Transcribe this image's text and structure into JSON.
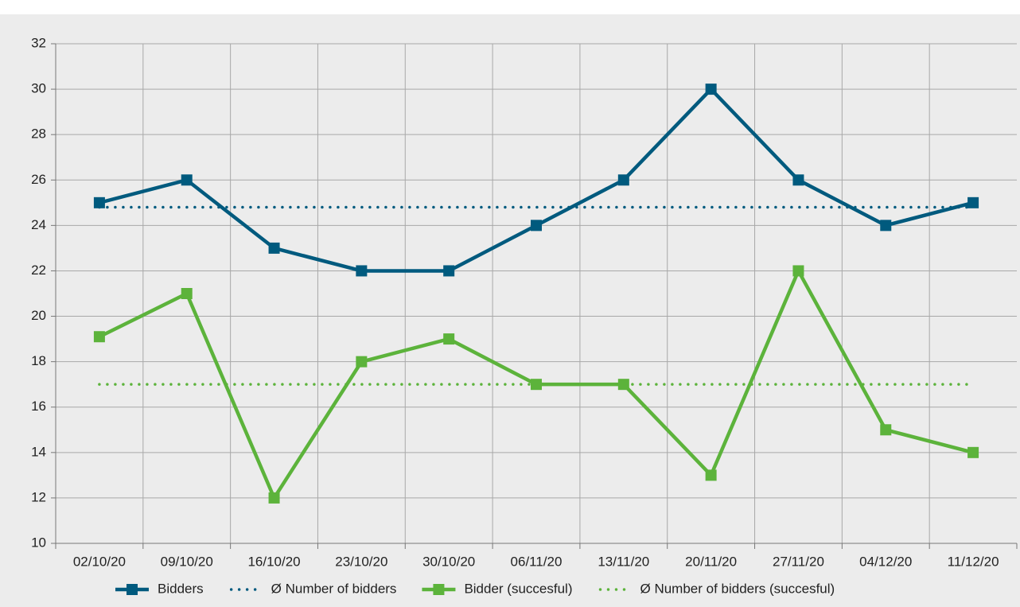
{
  "chart_data": {
    "type": "line",
    "categories": [
      "02/10/20",
      "09/10/20",
      "16/10/20",
      "23/10/20",
      "30/10/20",
      "06/11/20",
      "13/11/20",
      "20/11/20",
      "27/11/20",
      "04/12/20",
      "11/12/20"
    ],
    "series": [
      {
        "name": "Bidders",
        "color": "#005a7e",
        "values": [
          25,
          26,
          23,
          22,
          22,
          24,
          26,
          30,
          26,
          24,
          25
        ]
      },
      {
        "name": "Ø Number of bidders",
        "color": "#005a7e",
        "style": "dotted",
        "value": 24.8
      },
      {
        "name": "Bidder (succesful)",
        "color": "#5cb33b",
        "values": [
          19.1,
          21,
          12,
          18,
          19,
          17,
          17,
          13,
          22,
          15,
          14
        ]
      },
      {
        "name": "Ø Number of bidders (succesful)",
        "color": "#5cb33b",
        "style": "dotted",
        "value": 17
      }
    ],
    "ylim": [
      10,
      32
    ],
    "yticks": [
      10,
      12,
      14,
      16,
      18,
      20,
      22,
      24,
      26,
      28,
      30,
      32
    ],
    "grid": true,
    "legend": "bottom"
  }
}
